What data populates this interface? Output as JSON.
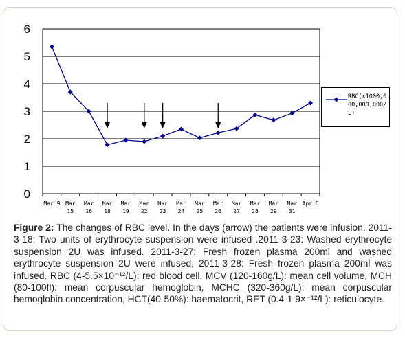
{
  "chart_data": {
    "type": "line",
    "categories": [
      "Mar 9",
      "Mar 15",
      "Mar 16",
      "Mar 18",
      "Mar 19",
      "Mar 22",
      "Mar 23",
      "Mar 24",
      "Mar 25",
      "Mar 26",
      "Mar 27",
      "Mar 28",
      "Mar 29",
      "Mar 31",
      "Apr 6"
    ],
    "series": [
      {
        "name": "RBC(×1000,000,000,000/L)",
        "values": [
          5.35,
          3.7,
          3.0,
          1.78,
          1.95,
          1.9,
          2.1,
          2.35,
          2.03,
          2.22,
          2.37,
          2.87,
          2.68,
          2.93,
          3.3
        ]
      }
    ],
    "ylim": [
      0,
      6
    ],
    "yticks": [
      "0",
      "1",
      "2",
      "3",
      "4",
      "5",
      "6"
    ],
    "grid": true,
    "legend_position": "right",
    "arrows_at": [
      "Mar 18",
      "Mar 22",
      "Mar 23",
      "Mar 26"
    ],
    "line_color": "#00008b"
  },
  "legend": {
    "label": "RBC(×1000,000,000,000/L)"
  },
  "caption": {
    "label": "Figure 2:",
    "text": "The changes of RBC level. In the days (arrow) the patients were infusion. 2011-3-18: Two units of erythrocyte suspension were infused .2011-3-23: Washed erythrocyte suspension 2U was infused. 2011-3-27: Fresh frozen plasma 200ml and washed erythrocyte suspension 2U were infused, 2011-3-28: Fresh frozen plasma 200ml was infused. RBC (4-5.5×10⁻¹²/L): red blood cell, MCV (120-160g/L): mean cell volume, MCH (80-100fl): mean corpuscular hemoglobin, MCHC (320-360g/L): mean corpuscular hemoglobin concentration, HCT(40-50%): haematocrit, RET (0.4-1.9×⁻¹²/L): reticulocyte."
  }
}
